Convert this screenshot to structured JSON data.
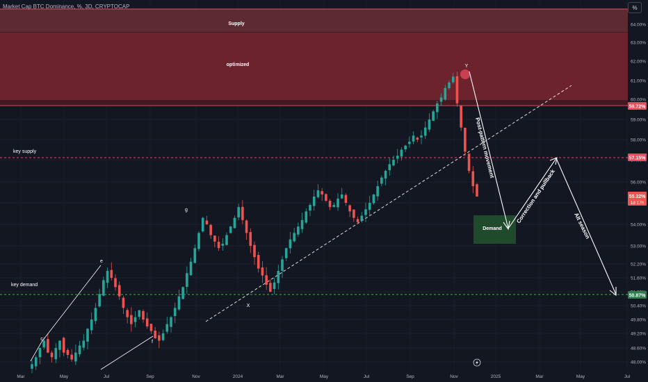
{
  "header": {
    "title": "Market Cap BTC Dominance, %, 3D, CRYPTOCAP",
    "scale_button": "%"
  },
  "colors": {
    "background": "#131722",
    "up": "#26a69a",
    "down": "#ef5350",
    "supply_zone": "#5c1f26",
    "demand_zone": "#1f4a2c",
    "axis_text": "#b2b5be",
    "annotation": "#ffffff"
  },
  "zones": {
    "supply_label": "Supply",
    "optimized_label": "optimized",
    "demand_label": "Demand",
    "key_supply_label": "key supply",
    "key_demand_label": "key demand"
  },
  "wave_labels": [
    "c",
    "e",
    "f",
    "g",
    "X",
    "Y"
  ],
  "annotations": {
    "post_pattern": "Post-pattern movement",
    "correction": "Correction and pullback",
    "alt_season": "Alt season"
  },
  "chart_data": {
    "type": "candlestick",
    "title": "Market Cap BTC Dominance, %, 3D, CRYPTOCAP",
    "ylim": [
      47.75,
      64.9
    ],
    "y_ticks": [
      "64.00%",
      "63.00%",
      "62.00%",
      "61.00%",
      "60.00%",
      "59.00%",
      "58.00%",
      "57.00%",
      "56.00%",
      "55.00%",
      "54.00%",
      "53.00%",
      "52.20%",
      "51.60%",
      "51.00%",
      "50.40%",
      "49.80%",
      "49.20%",
      "48.60%",
      "48.00%"
    ],
    "x_ticks": [
      "Mar",
      "May",
      "Jul",
      "Sep",
      "Nov",
      "2024",
      "Mar",
      "May",
      "Jul",
      "Sep",
      "Nov",
      "2025",
      "Mar",
      "May",
      "Jul"
    ],
    "price_labels": {
      "supply_line": "59.72%",
      "key_supply": "57.15%",
      "current": "55.32%",
      "countdown": "1d 17h",
      "key_demand": "50.87%"
    },
    "levels": {
      "supply_zone": [
        59.72,
        64.6
      ],
      "optimized_zone": [
        59.8,
        63.6
      ],
      "key_supply": 57.15,
      "key_demand": 50.87,
      "demand_zone": [
        53.1,
        54.5
      ]
    },
    "series": [
      {
        "name": "BTC.D",
        "values": [
          47.9,
          48.2,
          48.6,
          48.9,
          48.4,
          48.2,
          48.6,
          48.9,
          48.4,
          48.3,
          48.1,
          48.4,
          48.7,
          48.9,
          49.4,
          49.8,
          50.3,
          50.9,
          51.5,
          51.9,
          51.6,
          51.2,
          50.8,
          50.3,
          49.9,
          49.6,
          49.9,
          50.2,
          49.8,
          49.5,
          49.3,
          49.0,
          48.9,
          49.2,
          49.6,
          49.9,
          50.3,
          50.8,
          51.2,
          51.8,
          52.3,
          52.9,
          53.6,
          54.3,
          54.0,
          53.5,
          53.2,
          52.9,
          53.1,
          53.5,
          53.9,
          54.3,
          54.8,
          54.2,
          53.6,
          53.0,
          52.5,
          52.0,
          51.7,
          51.3,
          51.0,
          51.4,
          51.9,
          52.4,
          52.9,
          53.3,
          53.6,
          53.9,
          54.2,
          54.6,
          54.9,
          55.3,
          55.6,
          55.4,
          55.1,
          54.8,
          54.9,
          55.2,
          55.4,
          55.0,
          54.6,
          54.3,
          54.1,
          54.4,
          54.7,
          55.0,
          55.4,
          55.8,
          56.2,
          56.5,
          56.8,
          57.0,
          57.2,
          57.5,
          57.7,
          57.9,
          58.2,
          58.0,
          58.2,
          58.6,
          59.0,
          59.4,
          59.8,
          60.1,
          60.6,
          60.9,
          61.2,
          59.8,
          58.6,
          57.4,
          56.5,
          55.8,
          55.3
        ]
      }
    ],
    "trendline_points": [
      {
        "label": "X",
        "y": 50.87
      }
    ],
    "projection": [
      {
        "label": "Post-pattern movement",
        "from": 61.6,
        "to": 53.5
      },
      {
        "label": "Correction and pullback",
        "from": 53.5,
        "to": 57.15
      },
      {
        "label": "Alt season",
        "from": 57.15,
        "to": 50.87
      }
    ]
  }
}
